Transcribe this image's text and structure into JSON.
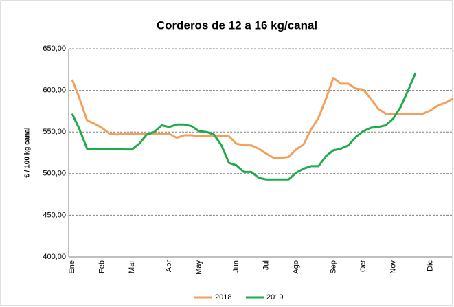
{
  "chart_data": {
    "type": "line",
    "title": "Corderos de 12 a 16 kg/canal",
    "y_label": "€ / 100 kg canal",
    "categories": [
      "Ene",
      null,
      null,
      null,
      "Feb",
      null,
      null,
      null,
      "Mar",
      null,
      null,
      null,
      null,
      "Abr",
      null,
      null,
      null,
      "May",
      null,
      null,
      null,
      null,
      "Jun",
      null,
      null,
      null,
      "Jul",
      null,
      null,
      null,
      "Ago",
      null,
      null,
      null,
      null,
      "Sep",
      null,
      null,
      null,
      "Oct",
      null,
      null,
      null,
      "Nov",
      null,
      null,
      null,
      null,
      "Dic",
      null,
      null,
      null
    ],
    "series": [
      {
        "name": "2018",
        "color": "#f4a05a",
        "values": [
          613,
          590,
          564,
          560,
          555,
          548,
          547,
          548,
          548,
          548,
          548,
          548,
          548,
          548,
          543,
          546,
          546,
          545,
          545,
          545,
          545,
          545,
          536,
          534,
          534,
          530,
          524,
          519,
          519,
          520,
          529,
          535,
          553,
          567,
          590,
          615,
          608,
          608,
          602,
          601,
          590,
          578,
          572,
          572,
          572,
          572,
          572,
          572,
          576,
          582,
          585,
          590
        ]
      },
      {
        "name": "2019",
        "color": "#1faa4b",
        "values": [
          572,
          553,
          530,
          530,
          530,
          530,
          530,
          529,
          529,
          536,
          547,
          550,
          558,
          556,
          559,
          559,
          557,
          551,
          550,
          547,
          534,
          513,
          510,
          502,
          502,
          495,
          493,
          493,
          493,
          493,
          501,
          506,
          509,
          509,
          521,
          528,
          530,
          534,
          544,
          551,
          555,
          556,
          558,
          566,
          580,
          600,
          621,
          null,
          null,
          null,
          null,
          null
        ]
      }
    ],
    "ylim": [
      400,
      650
    ],
    "yticks": [
      {
        "value": 400,
        "label": "400,00"
      },
      {
        "value": 450,
        "label": "450,00"
      },
      {
        "value": 500,
        "label": "500,00"
      },
      {
        "value": 550,
        "label": "550,00"
      },
      {
        "value": 600,
        "label": "600,00"
      },
      {
        "value": 650,
        "label": "650,00"
      }
    ],
    "grid": true,
    "legend": "bottom"
  }
}
